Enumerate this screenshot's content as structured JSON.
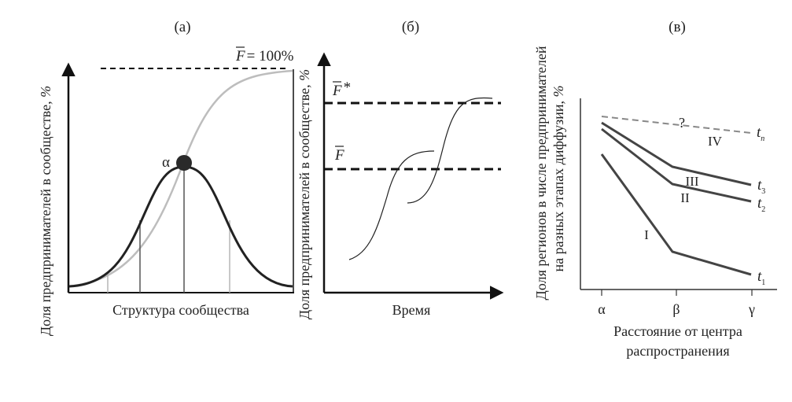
{
  "panel_a": {
    "title": "(а)",
    "ylabel_text": "Доля предпринимателей в сообществе, ",
    "ylabel_unit": "%",
    "xlabel": "Структура сообщества",
    "ref_line_letter": "F",
    "ref_line_rest": "= 100%",
    "peak_label": "α"
  },
  "panel_b": {
    "title": "(б)",
    "ylabel_text": "Доля предпринимателей в сообществе, ",
    "ylabel_unit": "%",
    "xlabel": "Время",
    "upper_line_letter": "F",
    "upper_line_star": "*",
    "lower_line_letter": "F"
  },
  "panel_c": {
    "title": "(в)",
    "ylabel_line1": "Доля регионов в числе предпринимателей",
    "ylabel_line2_text": "на разных этапах диффузии, ",
    "ylabel_line2_unit": "%",
    "xlabel_line1": "Расстояние от центра",
    "xlabel_line2": "распространения",
    "x_ticks": [
      "α",
      "β",
      "γ"
    ],
    "stage_labels": [
      "I",
      "II",
      "III",
      "IV"
    ],
    "question_mark": "?",
    "series": [
      {
        "t": "t",
        "sub": "1"
      },
      {
        "t": "t",
        "sub": "2"
      },
      {
        "t": "t",
        "sub": "3"
      },
      {
        "t": "t",
        "sub": "n"
      }
    ]
  }
}
